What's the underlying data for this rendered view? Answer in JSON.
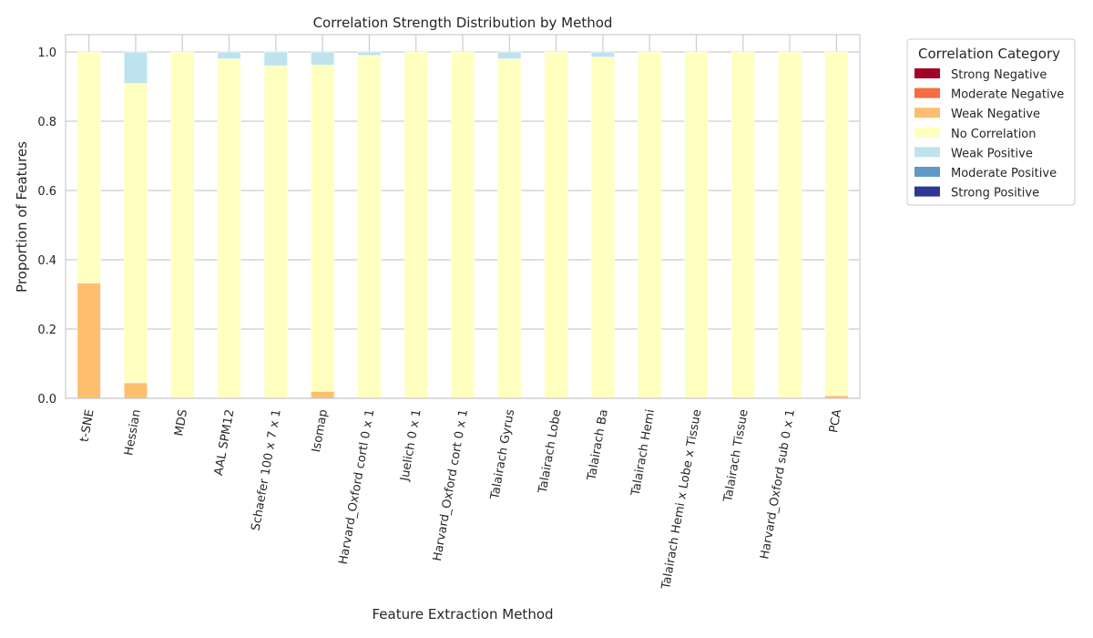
{
  "chart_data": {
    "type": "bar",
    "stacked": true,
    "title": "Correlation Strength Distribution by Method",
    "xlabel": "Feature Extraction Method",
    "ylabel": "Proportion of Features",
    "ylim": [
      0,
      1.05
    ],
    "yticks": [
      0.0,
      0.2,
      0.4,
      0.6,
      0.8,
      1.0
    ],
    "ytick_labels": [
      "0.0",
      "0.2",
      "0.4",
      "0.6",
      "0.8",
      "1.0"
    ],
    "grid": true,
    "legend_title": "Correlation Category",
    "legend_position": "outside-top-right",
    "categories": [
      "t-SNE",
      "Hessian",
      "MDS",
      "AAL SPM12",
      "Schaefer 100 x 7 x 1",
      "Isomap",
      "Harvard_Oxford cortl 0 x 1",
      "Juelich 0 x 1",
      "Harvard_Oxford cort 0 x 1",
      "Talairach Gyrus",
      "Talairach Lobe",
      "Talairach Ba",
      "Talairach Hemi",
      "Talairach Hemi x Lobe x Tissue",
      "Talairach Tissue",
      "Harvard_Oxford sub 0 x 1",
      "PCA"
    ],
    "series": [
      {
        "name": "Strong Negative",
        "color": "#a50026",
        "values": [
          0,
          0,
          0,
          0,
          0,
          0,
          0,
          0,
          0,
          0,
          0,
          0,
          0,
          0,
          0,
          0,
          0
        ]
      },
      {
        "name": "Moderate Negative",
        "color": "#f46d43",
        "values": [
          0,
          0,
          0,
          0,
          0,
          0,
          0,
          0,
          0,
          0,
          0,
          0,
          0,
          0,
          0,
          0,
          0
        ]
      },
      {
        "name": "Weak Negative",
        "color": "#fdbf6f",
        "values": [
          0.333,
          0.045,
          0,
          0,
          0,
          0.02,
          0,
          0,
          0,
          0,
          0,
          0,
          0,
          0,
          0,
          0,
          0.008
        ]
      },
      {
        "name": "No Correlation",
        "color": "#ffffbf",
        "values": [
          0.667,
          0.864,
          1.0,
          0.98,
          0.96,
          0.942,
          0.99,
          1.0,
          1.0,
          0.98,
          1.0,
          0.985,
          1.0,
          1.0,
          1.0,
          1.0,
          0.992
        ]
      },
      {
        "name": "Weak Positive",
        "color": "#bfe3ee",
        "values": [
          0,
          0.091,
          0,
          0.02,
          0.04,
          0.038,
          0.01,
          0,
          0,
          0.02,
          0,
          0.015,
          0,
          0,
          0,
          0,
          0
        ]
      },
      {
        "name": "Moderate Positive",
        "color": "#6199c8",
        "values": [
          0,
          0,
          0,
          0,
          0,
          0,
          0,
          0,
          0,
          0,
          0,
          0,
          0,
          0,
          0,
          0,
          0
        ]
      },
      {
        "name": "Strong Positive",
        "color": "#313695",
        "values": [
          0,
          0,
          0,
          0,
          0,
          0,
          0,
          0,
          0,
          0,
          0,
          0,
          0,
          0,
          0,
          0,
          0
        ]
      }
    ]
  }
}
